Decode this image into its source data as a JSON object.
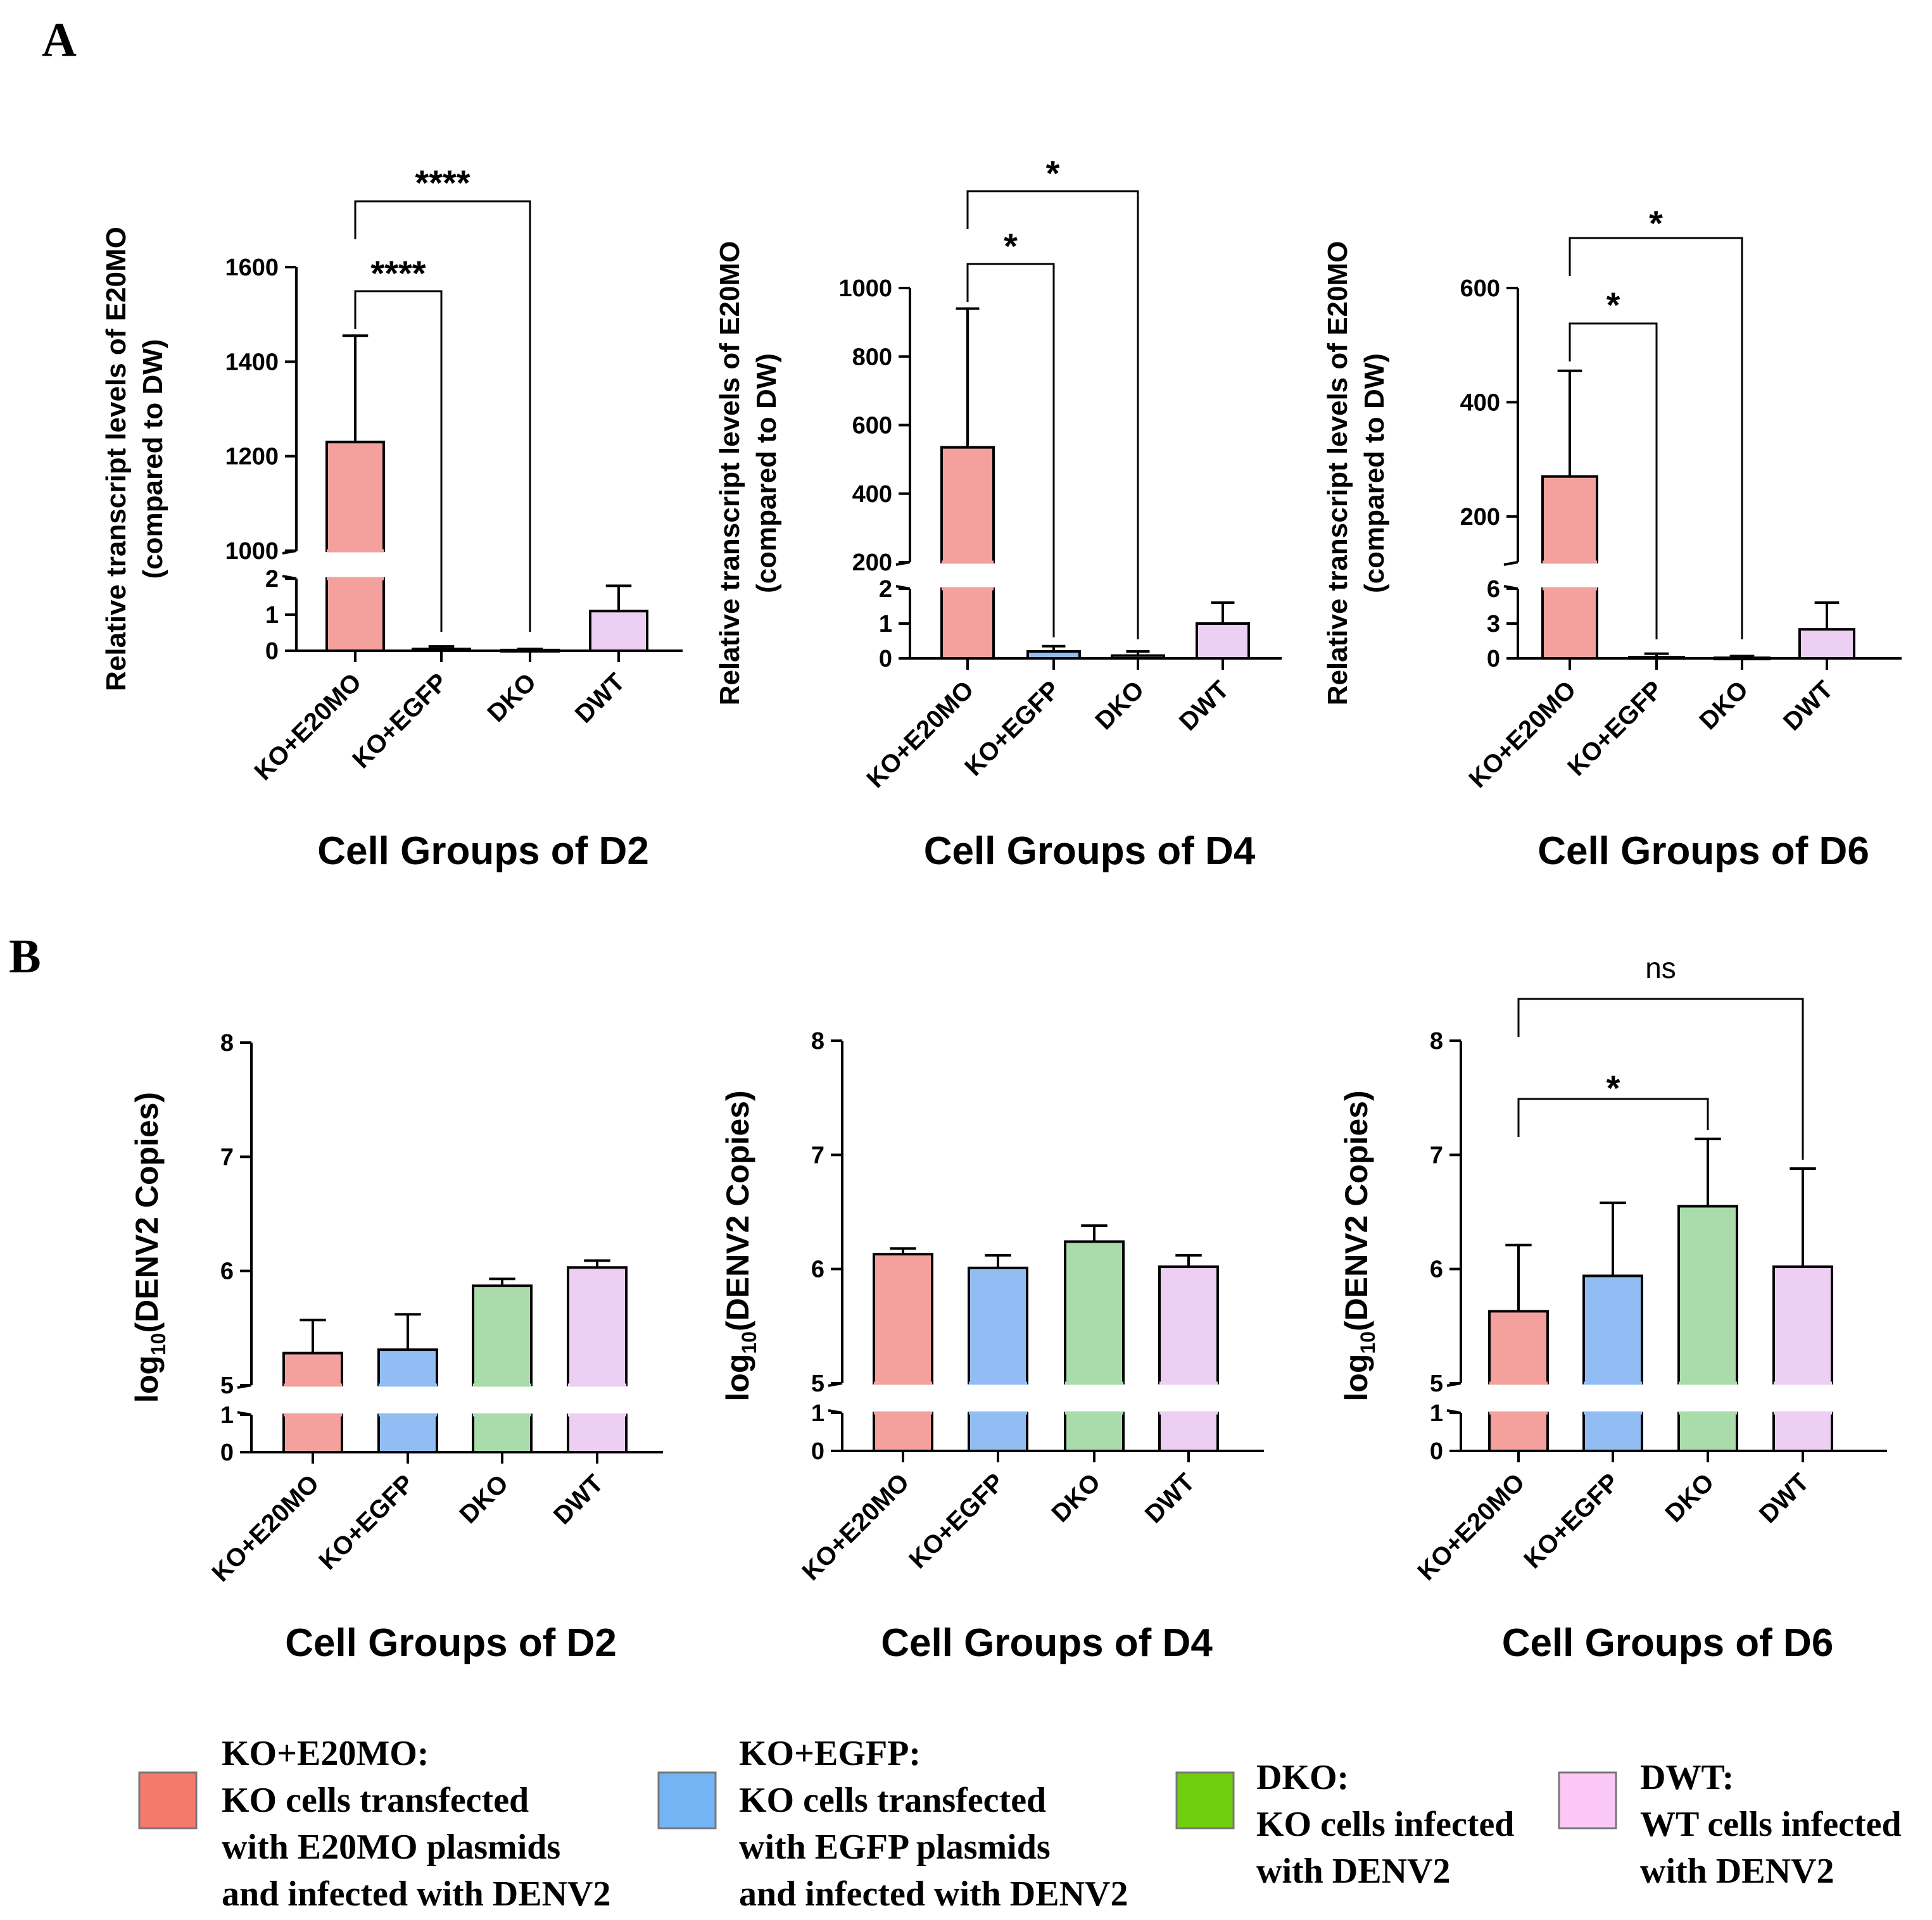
{
  "panel_labels": [
    "A",
    "B"
  ],
  "colors": {
    "KO+E20MO": "#f4a09c",
    "KO+EGFP": "#91bdf4",
    "DKO": "#a9dcaa",
    "DWT": "#eccff3",
    "stroke": "#000000"
  },
  "legend": {
    "items": [
      {
        "key": "KO+E20MO",
        "swatch_color": "#f47a6e",
        "lines": [
          "KO+E20MO:",
          "KO cells transfected",
          "with E20MO plasmids",
          "and infected with DENV2"
        ]
      },
      {
        "key": "KO+EGFP",
        "swatch_color": "#74b3f4",
        "lines": [
          "KO+EGFP:",
          "KO cells transfected",
          "with EGFP plasmids",
          "and infected with DENV2"
        ]
      },
      {
        "key": "DKO",
        "swatch_color": "#6fcf0e",
        "lines": [
          "DKO:",
          "KO cells infected",
          "with DENV2"
        ]
      },
      {
        "key": "DWT",
        "swatch_color": "#fbc8f6",
        "lines": [
          "DWT:",
          "WT cells infected",
          "with DENV2"
        ]
      }
    ]
  },
  "chart_data": [
    {
      "id": "A-D2",
      "panel": "A",
      "type": "bar",
      "title": "",
      "xlabel": "Cell Groups of D2",
      "ylabel": [
        "Relative transcript levels of E20MO",
        "(compared to DW)"
      ],
      "categories": [
        "KO+E20MO",
        "KO+EGFP",
        "DKO",
        "DWT"
      ],
      "values": [
        1230,
        0.05,
        0.02,
        1.1
      ],
      "errors_upper": [
        1455,
        0.12,
        0.05,
        1.8
      ],
      "axis_break": {
        "lower": [
          0,
          2
        ],
        "upper": [
          1000,
          1600
        ]
      },
      "lower_ticks": [
        0,
        1,
        2
      ],
      "upper_ticks": [
        1000,
        1200,
        1400,
        1600
      ],
      "significance": [
        {
          "from": 0,
          "to": 1,
          "label": "****"
        },
        {
          "from": 0,
          "to": 2,
          "label": "****"
        }
      ]
    },
    {
      "id": "A-D4",
      "panel": "A",
      "type": "bar",
      "title": "",
      "xlabel": "Cell Groups of D4",
      "ylabel": [
        "Relative transcript levels of E20MO",
        "(compared to DW)"
      ],
      "categories": [
        "KO+E20MO",
        "KO+EGFP",
        "DKO",
        "DWT"
      ],
      "values": [
        535,
        0.2,
        0.08,
        1.0
      ],
      "errors_upper": [
        940,
        0.35,
        0.2,
        1.6
      ],
      "axis_break": {
        "lower": [
          0,
          2
        ],
        "upper": [
          200,
          1000
        ]
      },
      "lower_ticks": [
        0,
        1,
        2
      ],
      "upper_ticks": [
        200,
        400,
        600,
        800,
        1000
      ],
      "significance": [
        {
          "from": 0,
          "to": 1,
          "label": "*"
        },
        {
          "from": 0,
          "to": 2,
          "label": "*"
        }
      ]
    },
    {
      "id": "A-D6",
      "panel": "A",
      "type": "bar",
      "title": "",
      "xlabel": "Cell Groups of D6",
      "ylabel": [
        "Relative transcript levels of E20MO",
        "(compared to DW)"
      ],
      "categories": [
        "KO+E20MO",
        "KO+EGFP",
        "DKO",
        "DWT"
      ],
      "values": [
        270,
        0.1,
        0.05,
        2.5
      ],
      "errors_upper": [
        455,
        0.4,
        0.2,
        4.8
      ],
      "axis_break": {
        "lower": [
          0,
          6
        ],
        "upper": [
          120,
          600
        ]
      },
      "lower_ticks": [
        0,
        3,
        6
      ],
      "upper_ticks": [
        200,
        400,
        600
      ],
      "significance": [
        {
          "from": 0,
          "to": 1,
          "label": "*"
        },
        {
          "from": 0,
          "to": 2,
          "label": "*"
        }
      ]
    },
    {
      "id": "B-D2",
      "panel": "B",
      "type": "bar",
      "title": "",
      "xlabel": "Cell Groups of D2",
      "ylabel": {
        "prefix": "log",
        "sub": "10",
        "suffix": "(DENV2 Copies)"
      },
      "categories": [
        "KO+E20MO",
        "KO+EGFP",
        "DKO",
        "DWT"
      ],
      "values": [
        5.28,
        5.31,
        5.87,
        6.03
      ],
      "errors_upper": [
        5.57,
        5.62,
        5.93,
        6.09
      ],
      "axis_break": {
        "lower": [
          0,
          1
        ],
        "upper": [
          5,
          8
        ]
      },
      "lower_ticks": [
        0,
        1
      ],
      "upper_ticks": [
        5,
        6,
        7,
        8
      ],
      "significance": []
    },
    {
      "id": "B-D4",
      "panel": "B",
      "type": "bar",
      "title": "",
      "xlabel": "Cell Groups of D4",
      "ylabel": {
        "prefix": "log",
        "sub": "10",
        "suffix": "(DENV2 Copies)"
      },
      "categories": [
        "KO+E20MO",
        "KO+EGFP",
        "DKO",
        "DWT"
      ],
      "values": [
        6.13,
        6.01,
        6.24,
        6.02
      ],
      "errors_upper": [
        6.18,
        6.12,
        6.38,
        6.12
      ],
      "axis_break": {
        "lower": [
          0,
          1
        ],
        "upper": [
          5,
          8
        ]
      },
      "lower_ticks": [
        0,
        1
      ],
      "upper_ticks": [
        5,
        6,
        7,
        8
      ],
      "significance": []
    },
    {
      "id": "B-D6",
      "panel": "B",
      "type": "bar",
      "title": "",
      "xlabel": "Cell Groups of D6",
      "ylabel": {
        "prefix": "log",
        "sub": "10",
        "suffix": "(DENV2 Copies)"
      },
      "categories": [
        "KO+E20MO",
        "KO+EGFP",
        "DKO",
        "DWT"
      ],
      "values": [
        5.63,
        5.94,
        6.55,
        6.02
      ],
      "errors_upper": [
        6.21,
        6.58,
        7.14,
        6.88
      ],
      "axis_break": {
        "lower": [
          0,
          1
        ],
        "upper": [
          5,
          8
        ]
      },
      "lower_ticks": [
        0,
        1
      ],
      "upper_ticks": [
        5,
        6,
        7,
        8
      ],
      "significance": [
        {
          "from": 0,
          "to": 2,
          "label": "*"
        },
        {
          "from": 0,
          "to": 3,
          "label": "ns",
          "style": "normal"
        }
      ]
    }
  ]
}
